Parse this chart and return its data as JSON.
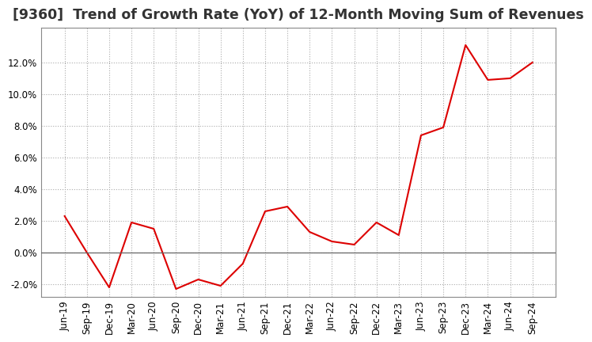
{
  "title": "[9360]  Trend of Growth Rate (YoY) of 12-Month Moving Sum of Revenues",
  "x_labels": [
    "Jun-19",
    "Sep-19",
    "Dec-19",
    "Mar-20",
    "Jun-20",
    "Sep-20",
    "Dec-20",
    "Mar-21",
    "Jun-21",
    "Sep-21",
    "Dec-21",
    "Mar-22",
    "Jun-22",
    "Sep-22",
    "Dec-22",
    "Mar-23",
    "Jun-23",
    "Sep-23",
    "Dec-23",
    "Mar-24",
    "Jun-24",
    "Sep-24"
  ],
  "y_values": [
    2.3,
    0.0,
    -2.2,
    1.9,
    1.5,
    -2.3,
    -1.7,
    -2.1,
    -0.7,
    2.6,
    2.9,
    1.3,
    0.7,
    0.5,
    1.9,
    1.1,
    7.4,
    7.9,
    13.1,
    10.9,
    11.0,
    12.0
  ],
  "line_color": "#dd0000",
  "background_color": "#ffffff",
  "plot_bg_color": "#ffffff",
  "grid_color": "#aaaaaa",
  "zero_line_color": "#666666",
  "spine_color": "#888888",
  "ylim": [
    -2.8,
    14.2
  ],
  "yticks": [
    -2.0,
    0.0,
    2.0,
    4.0,
    6.0,
    8.0,
    10.0,
    12.0
  ],
  "title_fontsize": 12.5,
  "tick_fontsize": 8.5
}
